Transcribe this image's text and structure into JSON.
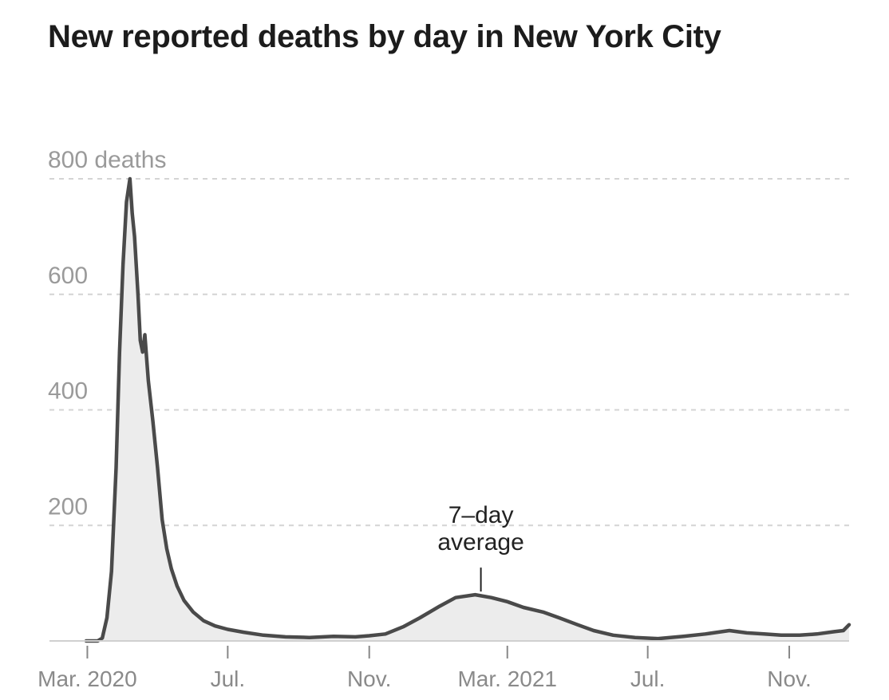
{
  "chart_data": {
    "type": "area",
    "title": "New reported deaths by day in New York City",
    "xlabel": "",
    "ylabel": "",
    "x_start": "2020-02-29",
    "x_end": "2021-12-23",
    "ylim": [
      0,
      800
    ],
    "y_ticks": [
      {
        "value": 200,
        "label": "200"
      },
      {
        "value": 400,
        "label": "400"
      },
      {
        "value": 600,
        "label": "600"
      },
      {
        "value": 800,
        "label": "800 deaths"
      }
    ],
    "x_ticks": [
      {
        "date": "2020-03-01",
        "label": "Mar. 2020"
      },
      {
        "date": "2020-07-01",
        "label": "Jul."
      },
      {
        "date": "2020-11-01",
        "label": "Nov."
      },
      {
        "date": "2021-03-01",
        "label": "Mar. 2021"
      },
      {
        "date": "2021-07-01",
        "label": "Jul."
      },
      {
        "date": "2021-11-01",
        "label": "Nov."
      }
    ],
    "grid": true,
    "annotation": {
      "lines": [
        "7–day",
        "average"
      ],
      "date": "2021-02-06",
      "value": 80
    },
    "series": [
      {
        "name": "7–day average",
        "points": [
          [
            "2020-02-29",
            0
          ],
          [
            "2020-03-10",
            0
          ],
          [
            "2020-03-14",
            5
          ],
          [
            "2020-03-18",
            40
          ],
          [
            "2020-03-22",
            120
          ],
          [
            "2020-03-26",
            300
          ],
          [
            "2020-03-29",
            500
          ],
          [
            "2020-04-01",
            650
          ],
          [
            "2020-04-04",
            760
          ],
          [
            "2020-04-07",
            800
          ],
          [
            "2020-04-09",
            740
          ],
          [
            "2020-04-11",
            700
          ],
          [
            "2020-04-14",
            600
          ],
          [
            "2020-04-16",
            520
          ],
          [
            "2020-04-18",
            500
          ],
          [
            "2020-04-20",
            530
          ],
          [
            "2020-04-23",
            450
          ],
          [
            "2020-04-27",
            380
          ],
          [
            "2020-05-01",
            300
          ],
          [
            "2020-05-05",
            210
          ],
          [
            "2020-05-09",
            160
          ],
          [
            "2020-05-13",
            125
          ],
          [
            "2020-05-18",
            95
          ],
          [
            "2020-05-24",
            70
          ],
          [
            "2020-06-01",
            50
          ],
          [
            "2020-06-10",
            35
          ],
          [
            "2020-06-20",
            26
          ],
          [
            "2020-07-01",
            20
          ],
          [
            "2020-07-15",
            15
          ],
          [
            "2020-08-01",
            10
          ],
          [
            "2020-08-20",
            7
          ],
          [
            "2020-09-10",
            6
          ],
          [
            "2020-10-01",
            8
          ],
          [
            "2020-10-20",
            7
          ],
          [
            "2020-11-01",
            9
          ],
          [
            "2020-11-15",
            12
          ],
          [
            "2020-12-01",
            25
          ],
          [
            "2020-12-15",
            40
          ],
          [
            "2021-01-01",
            60
          ],
          [
            "2021-01-15",
            75
          ],
          [
            "2021-02-01",
            80
          ],
          [
            "2021-02-15",
            75
          ],
          [
            "2021-03-01",
            68
          ],
          [
            "2021-03-15",
            58
          ],
          [
            "2021-04-01",
            50
          ],
          [
            "2021-04-15",
            40
          ],
          [
            "2021-05-01",
            28
          ],
          [
            "2021-05-15",
            18
          ],
          [
            "2021-06-01",
            10
          ],
          [
            "2021-06-20",
            6
          ],
          [
            "2021-07-10",
            4
          ],
          [
            "2021-08-01",
            8
          ],
          [
            "2021-08-20",
            12
          ],
          [
            "2021-09-10",
            18
          ],
          [
            "2021-09-25",
            14
          ],
          [
            "2021-10-10",
            12
          ],
          [
            "2021-10-25",
            10
          ],
          [
            "2021-11-10",
            10
          ],
          [
            "2021-11-25",
            12
          ],
          [
            "2021-12-10",
            16
          ],
          [
            "2021-12-18",
            18
          ],
          [
            "2021-12-23",
            28
          ]
        ]
      }
    ]
  }
}
